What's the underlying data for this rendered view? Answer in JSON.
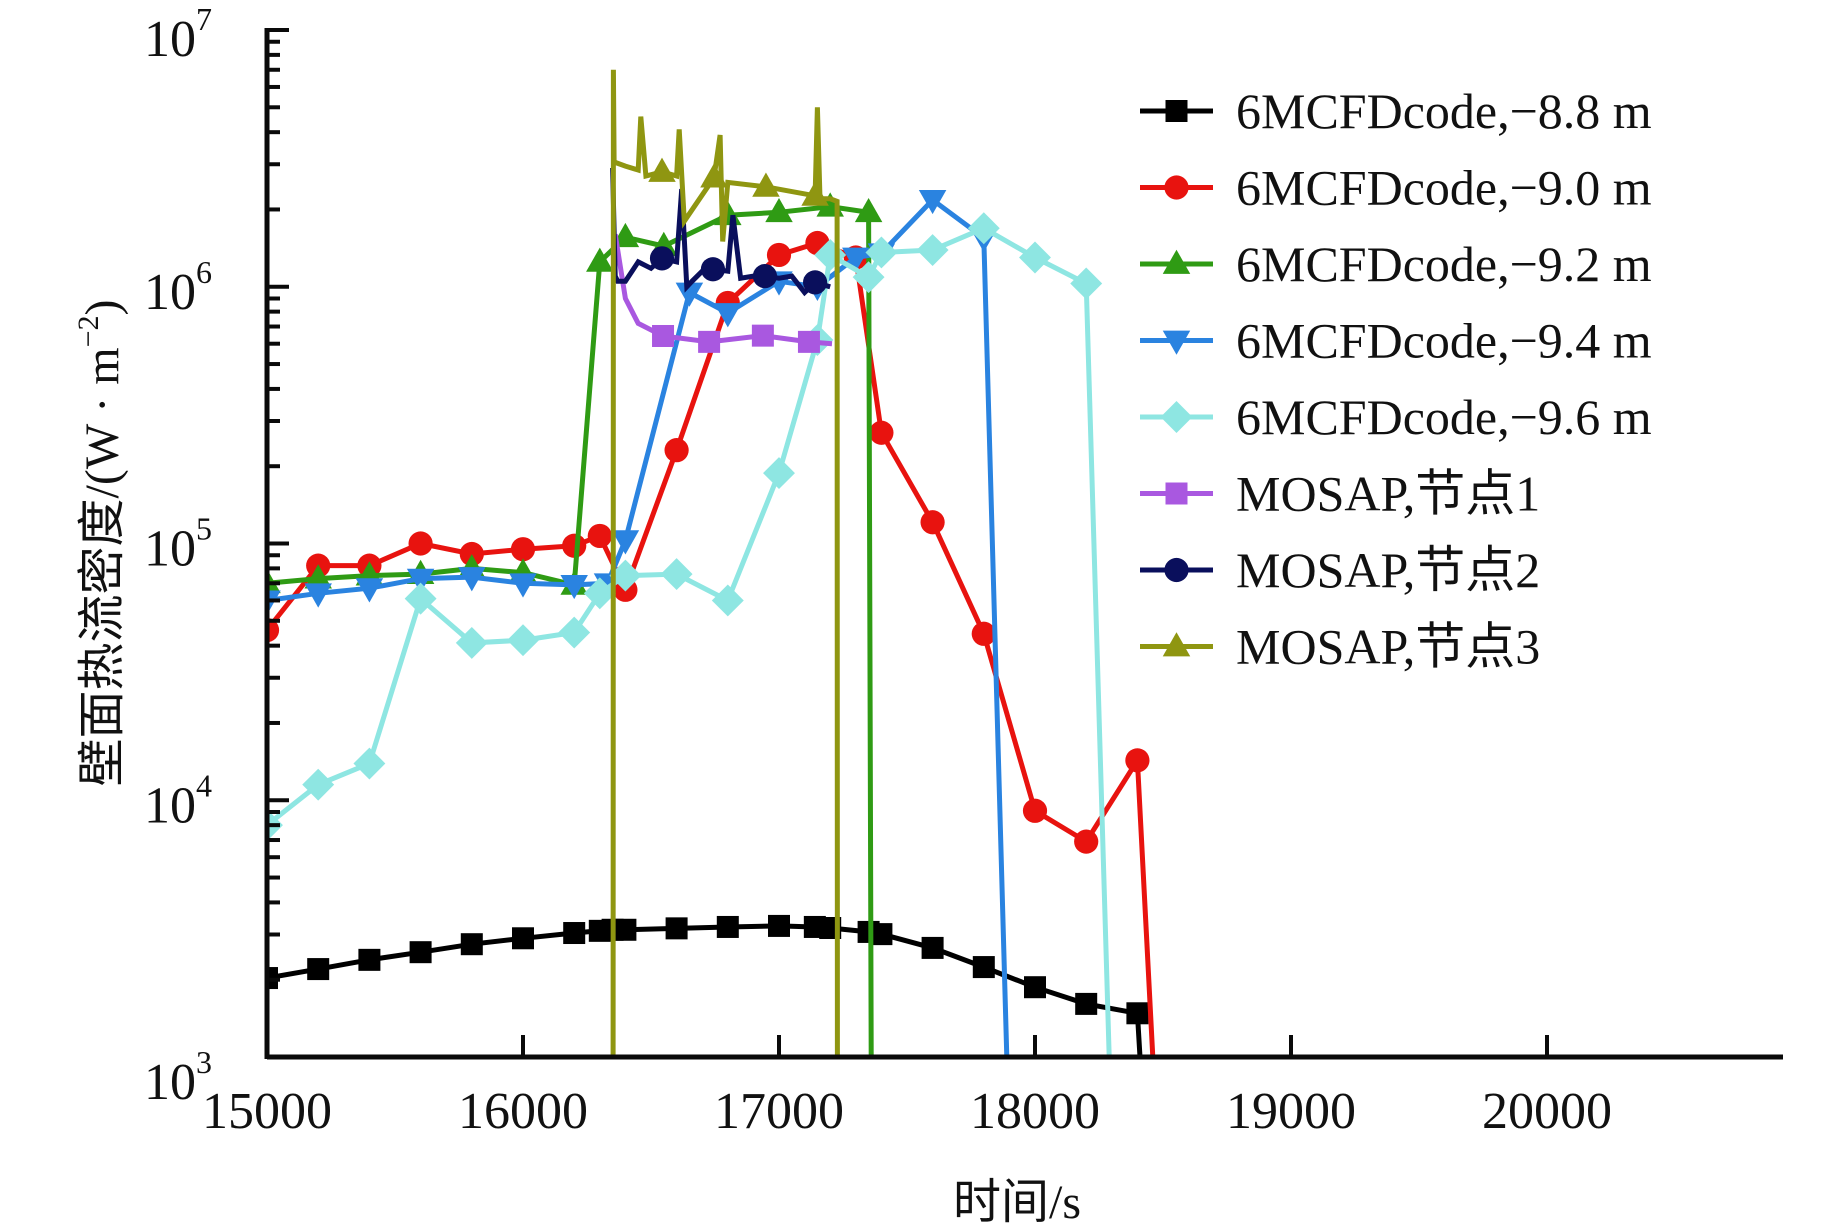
{
  "chart_data": {
    "type": "line",
    "title": "",
    "xlabel": "时间/s",
    "ylabel": "壁面热流密度/(W · m⁻²)",
    "ylabel_main": "壁面热流密度/(W · m",
    "ylabel_sup": "−2",
    "ylabel_close": ")",
    "xlim": [
      15000,
      21000
    ],
    "ylim": [
      1000,
      10000000
    ],
    "yscale": "log",
    "grid": false,
    "legend_position": "top-right",
    "xticks": [
      {
        "value": 15000,
        "label": "15000"
      },
      {
        "value": 16000,
        "label": "16000"
      },
      {
        "value": 17000,
        "label": "17000"
      },
      {
        "value": 18000,
        "label": "18000"
      },
      {
        "value": 19000,
        "label": "19000"
      },
      {
        "value": 20000,
        "label": "20000"
      }
    ],
    "yticks": [
      {
        "value": 1000,
        "base": "10",
        "exp": "3"
      },
      {
        "value": 10000,
        "base": "10",
        "exp": "4"
      },
      {
        "value": 100000,
        "base": "10",
        "exp": "5"
      },
      {
        "value": 1000000,
        "base": "10",
        "exp": "6"
      },
      {
        "value": 10000000,
        "base": "10",
        "exp": "7"
      }
    ],
    "series": [
      {
        "name": "6MCFDcode,−8.8 m",
        "color": "#000000",
        "marker": "square",
        "x": [
          15000,
          15200,
          15400,
          15600,
          15800,
          16000,
          16200,
          16300,
          16350,
          16400,
          16600,
          16800,
          17000,
          17140,
          17200,
          17350,
          17400,
          17600,
          17800,
          18000,
          18200,
          18400,
          18410
        ],
        "y": [
          2030,
          2200,
          2390,
          2560,
          2750,
          2900,
          3040,
          3100,
          3130,
          3130,
          3170,
          3210,
          3240,
          3210,
          3180,
          3070,
          3010,
          2660,
          2240,
          1870,
          1610,
          1480,
          1000
        ],
        "marker_x": [
          15000,
          15200,
          15400,
          15600,
          15800,
          16000,
          16200,
          16300,
          16350,
          16400,
          16600,
          16800,
          17000,
          17140,
          17200,
          17350,
          17400,
          17600,
          17800,
          18000,
          18200,
          18400
        ]
      },
      {
        "name": "6MCFDcode,−9.0 m",
        "color": "#e8130f",
        "marker": "circle",
        "x": [
          15000,
          15200,
          15400,
          15600,
          15800,
          16000,
          16200,
          16300,
          16400,
          16600,
          16800,
          17000,
          17150,
          17300,
          17400,
          17600,
          17800,
          18000,
          18200,
          18400,
          18460
        ],
        "y": [
          46000,
          82000,
          82000,
          100000,
          91000,
          95000,
          98000,
          107000,
          66000,
          231000,
          865000,
          1330000,
          1480000,
          1300000,
          270000,
          121000,
          44500,
          9100,
          6900,
          14300,
          1000
        ],
        "marker_x": [
          15000,
          15200,
          15400,
          15600,
          15800,
          16000,
          16200,
          16300,
          16400,
          16600,
          16800,
          17000,
          17150,
          17300,
          17400,
          17600,
          17800,
          18000,
          18200,
          18400
        ]
      },
      {
        "name": "6MCFDcode,−9.2 m",
        "color": "#2f9b14",
        "marker": "triangle-up",
        "x": [
          15000,
          15200,
          15400,
          15600,
          15800,
          16000,
          16200,
          16300,
          16400,
          16550,
          16800,
          17000,
          17200,
          17350,
          17360
        ],
        "y": [
          70000,
          73000,
          75000,
          76000,
          80000,
          77000,
          69000,
          1250000,
          1560000,
          1440000,
          1900000,
          1950000,
          2050000,
          1950000,
          1000
        ],
        "marker_x": [
          15000,
          15200,
          15400,
          15600,
          15800,
          16000,
          16200,
          16300,
          16400,
          16550,
          16800,
          17000,
          17200,
          17350
        ]
      },
      {
        "name": "6MCFDcode,−9.4 m",
        "color": "#2a83e0",
        "marker": "triangle-down",
        "x": [
          15000,
          15200,
          15400,
          15600,
          15800,
          16000,
          16200,
          16330,
          16400,
          16650,
          16800,
          17000,
          17150,
          17300,
          17400,
          17600,
          17800,
          17890
        ],
        "y": [
          60000,
          64000,
          67000,
          73000,
          74000,
          70000,
          69000,
          70000,
          103000,
          950000,
          790000,
          1050000,
          1000000,
          1300000,
          1350000,
          2180000,
          1550000,
          1000
        ],
        "marker_x": [
          15000,
          15200,
          15400,
          15600,
          15800,
          16000,
          16200,
          16330,
          16400,
          16650,
          16800,
          17000,
          17150,
          17300,
          17400,
          17600,
          17800
        ]
      },
      {
        "name": "6MCFDcode,−9.6 m",
        "color": "#8ee6e2",
        "marker": "diamond",
        "x": [
          15000,
          15200,
          15400,
          15600,
          15800,
          16000,
          16200,
          16300,
          16400,
          16600,
          16800,
          17000,
          17150,
          17200,
          17350,
          17400,
          17600,
          17800,
          18000,
          18200,
          18290
        ],
        "y": [
          8000,
          11500,
          13900,
          61000,
          41000,
          42000,
          45000,
          64000,
          75000,
          76000,
          60000,
          188000,
          620000,
          1330000,
          1090000,
          1360000,
          1390000,
          1690000,
          1300000,
          1030000,
          1000
        ],
        "marker_x": [
          15000,
          15200,
          15400,
          15600,
          15800,
          16000,
          16200,
          16300,
          16400,
          16600,
          16800,
          17000,
          17150,
          17200,
          17350,
          17400,
          17600,
          17800,
          18000,
          18200
        ]
      },
      {
        "name": "MOSAP,节点1",
        "color": "#a958e0",
        "marker": "square",
        "x": [
          16360,
          16400,
          16450,
          16547,
          16727,
          16937,
          17117,
          17207
        ],
        "y": [
          1600000,
          900000,
          720000,
          643000,
          610000,
          645000,
          610000,
          600000
        ],
        "marker_x": [
          16547,
          16727,
          16937,
          17117
        ]
      },
      {
        "name": "MOSAP,节点2",
        "color": "#0a0f5c",
        "marker": "circle",
        "x": [
          16350,
          16360,
          16370,
          16400,
          16450,
          16500,
          16543,
          16600,
          16620,
          16640,
          16660,
          16700,
          16742,
          16800,
          16820,
          16850,
          16900,
          16945,
          17000,
          17050,
          17100,
          17141,
          17200
        ],
        "y": [
          2900000,
          1100000,
          1050000,
          1050000,
          1250000,
          1180000,
          1290000,
          1250000,
          2400000,
          1000000,
          1050000,
          1150000,
          1170000,
          1150000,
          1900000,
          1080000,
          1100000,
          1100000,
          1080000,
          1100000,
          950000,
          1040000,
          1000000
        ],
        "marker_x": [
          16543,
          16742,
          16945,
          17141
        ]
      },
      {
        "name": "MOSAP,节点3",
        "color": "#8f9611",
        "marker": "triangle-up",
        "x": [
          16352,
          16353,
          16356,
          16360,
          16400,
          16450,
          16460,
          16480,
          16543,
          16600,
          16610,
          16630,
          16746,
          16770,
          16780,
          16800,
          16949,
          17141,
          17150,
          17160,
          17200,
          17227,
          17228
        ],
        "y": [
          1000,
          7000000,
          3100000,
          3050000,
          2950000,
          2850000,
          4600000,
          2700000,
          2800000,
          2700000,
          4100000,
          1800000,
          2660000,
          3900000,
          1500000,
          2550000,
          2450000,
          2260000,
          5000000,
          2200000,
          2200000,
          2150000,
          1000
        ],
        "marker_x": [
          16543,
          16746,
          16949,
          17141
        ]
      }
    ]
  }
}
